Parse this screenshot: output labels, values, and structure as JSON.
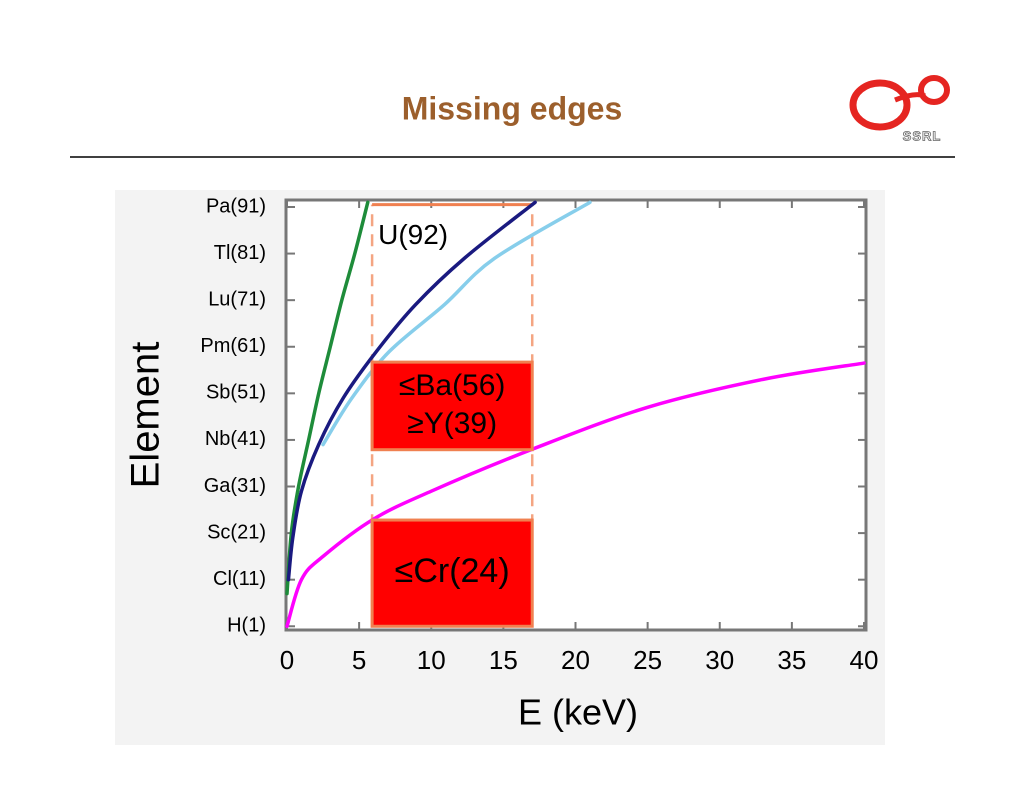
{
  "slide": {
    "title": "Missing edges",
    "logo_text": "SSRL"
  },
  "chart_data": {
    "type": "line",
    "x_label": "E (keV)",
    "y_label": "Element",
    "xlim": [
      0,
      40
    ],
    "xticks": [
      0,
      5,
      10,
      15,
      20,
      25,
      30,
      35,
      40
    ],
    "ylim": [
      0.2,
      92.5
    ],
    "yticks": [
      {
        "value": 1,
        "label": "H(1)"
      },
      {
        "value": 11,
        "label": "Cl(11)"
      },
      {
        "value": 21,
        "label": "Sc(21)"
      },
      {
        "value": 31,
        "label": "Ga(31)"
      },
      {
        "value": 41,
        "label": "Nb(41)"
      },
      {
        "value": 51,
        "label": "Sb(51)"
      },
      {
        "value": 61,
        "label": "Pm(61)"
      },
      {
        "value": 71,
        "label": "Lu(71)"
      },
      {
        "value": 81,
        "label": "Tl(81)"
      },
      {
        "value": 91,
        "label": "Pa(91)"
      }
    ],
    "grid": false,
    "series": [
      {
        "color": "#87ceeb",
        "x": [
          2.5,
          4.5,
          7.1,
          10.9,
          14.4,
          21
        ],
        "values": [
          40,
          50,
          60,
          70,
          80,
          92
        ]
      },
      {
        "color": "#ff00ff",
        "x": [
          0,
          1,
          2.5,
          6,
          10,
          17,
          25,
          33,
          40
        ],
        "values": [
          1,
          11,
          16,
          24,
          30,
          39,
          48,
          54,
          57.5
        ]
      },
      {
        "color": "#1e8c3a",
        "x": [
          0,
          0.3,
          0.8,
          1.5,
          2.2,
          3,
          3.8,
          4.7,
          5.6
        ],
        "values": [
          8,
          21,
          31,
          41,
          51,
          61,
          71,
          81,
          92
        ]
      },
      {
        "color": "#1a1a80",
        "x": [
          0.1,
          0.4,
          1,
          2.2,
          3.9,
          6.2,
          8.9,
          12.3,
          17.2
        ],
        "values": [
          11,
          20,
          30,
          40,
          50,
          60,
          70,
          80,
          92
        ]
      }
    ],
    "window": {
      "xlim": [
        5.9,
        17
      ],
      "ylim": [
        1,
        91.5
      ],
      "label": "U(92)"
    },
    "regions": [
      {
        "xlim": [
          5.9,
          17
        ],
        "ylim": [
          38.9,
          57.7
        ],
        "labels": [
          "≤Ba(56)",
          "≥Y(39)"
        ]
      },
      {
        "xlim": [
          5.9,
          17
        ],
        "ylim": [
          1,
          23.8
        ],
        "labels": [
          "≤Cr(24)"
        ]
      }
    ]
  }
}
